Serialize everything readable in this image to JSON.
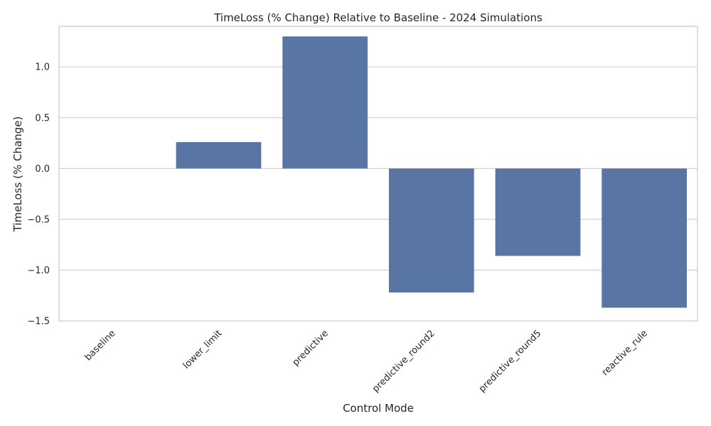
{
  "chart_data": {
    "type": "bar",
    "title": "TimeLoss (% Change) Relative to Baseline - 2024 Simulations",
    "xlabel": "Control Mode",
    "ylabel": "TimeLoss (% Change)",
    "categories": [
      "baseline",
      "lower_limit",
      "predictive",
      "predictive_round2",
      "predictive_round5",
      "reactive_rule"
    ],
    "values": [
      0.0,
      0.26,
      1.3,
      -1.22,
      -0.86,
      -1.37
    ],
    "ylim": [
      -1.5,
      1.4
    ],
    "yticks": [
      -1.5,
      -1.0,
      -0.5,
      0.0,
      0.5,
      1.0
    ],
    "ytick_labels": [
      "−1.5",
      "−1.0",
      "−0.5",
      "0.0",
      "0.5",
      "1.0"
    ],
    "grid": "horizontal",
    "colors": {
      "bar": "#5875a4",
      "grid": "#cccccc",
      "frame": "#cccccc"
    }
  }
}
